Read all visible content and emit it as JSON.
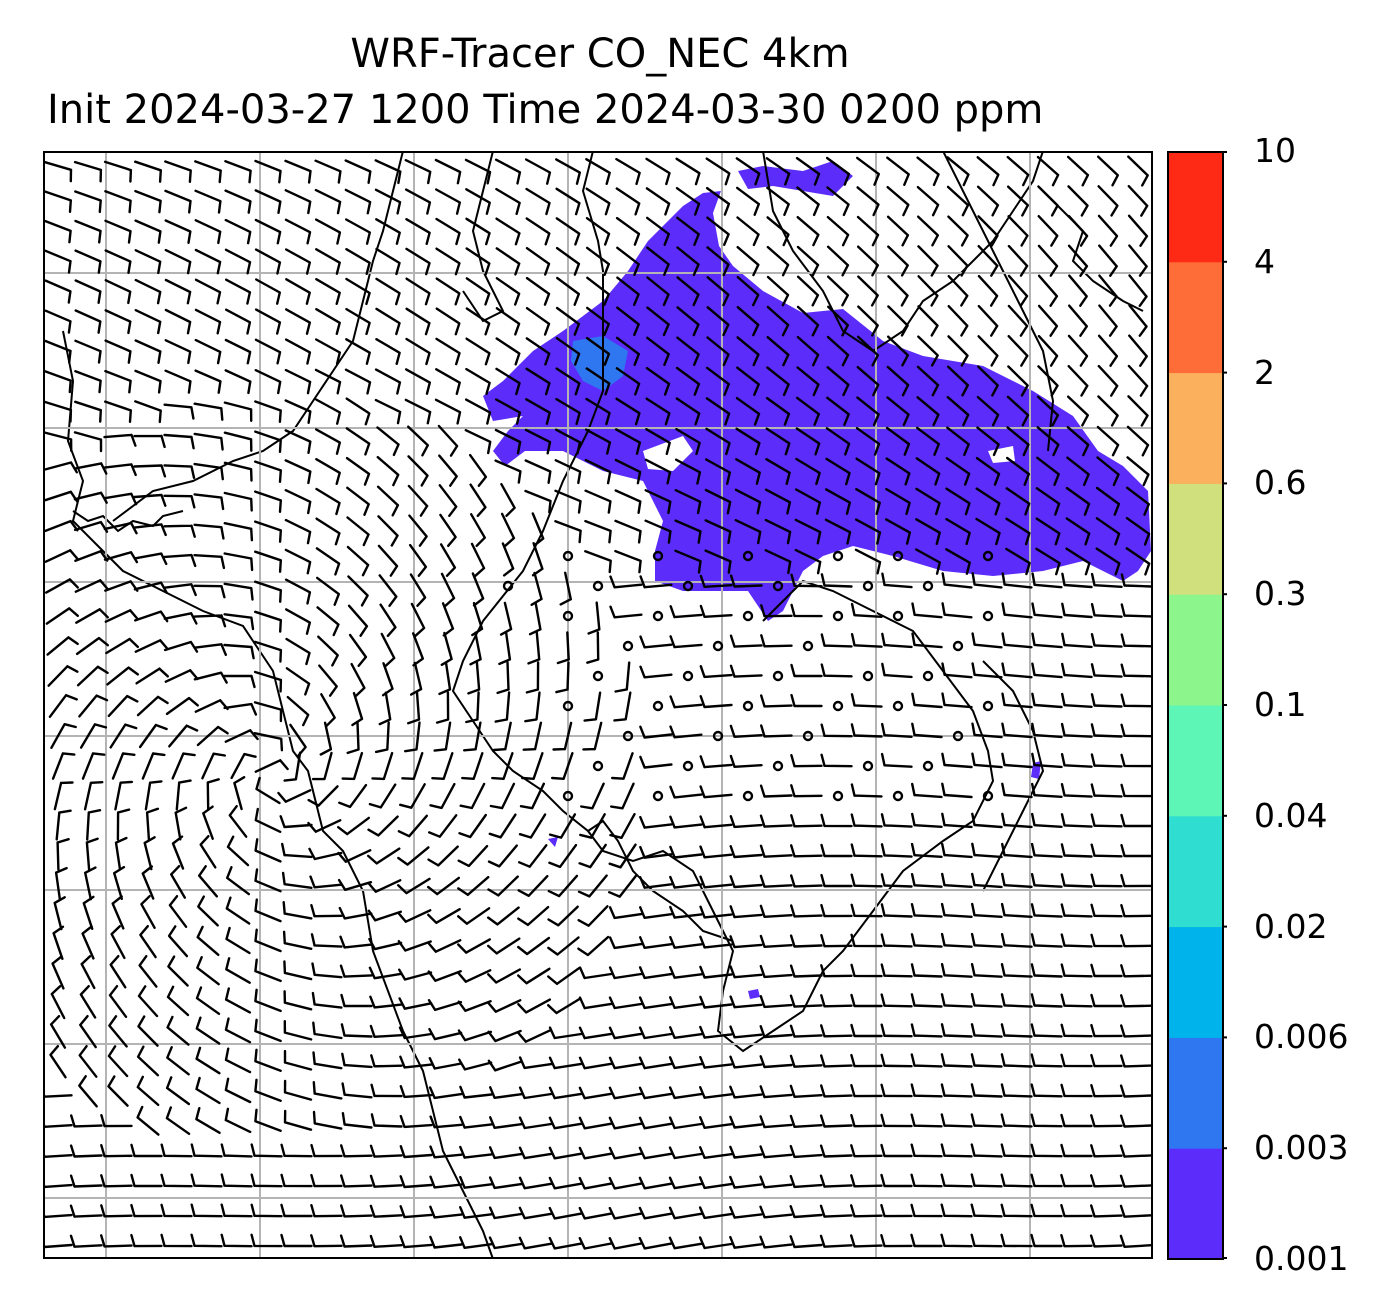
{
  "title": {
    "line1": "WRF-Tracer CO_NEC 4km",
    "line2": "Init 2024-03-27 1200 Time 2024-03-30 0200 ppm"
  },
  "colorbar": {
    "levels": [
      "0.001",
      "0.003",
      "0.006",
      "0.02",
      "0.04",
      "0.1",
      "0.3",
      "0.6",
      "2",
      "4",
      "10"
    ],
    "colors": [
      "#5b2cfa",
      "#2f77f1",
      "#00b3ea",
      "#2fddd1",
      "#5df6b7",
      "#8cf58b",
      "#cfe07d",
      "#fbb05e",
      "#fe6d37",
      "#ff2a16"
    ]
  },
  "map": {
    "plume_color": "#5b2cfa",
    "plume_core_color": "#2f77f1",
    "gridline_color": "#b4b4b4",
    "barb_color": "#000000",
    "symbols": [
      "wind-barbs",
      "calm-wind-circles",
      "coastlines",
      "lat-lon-grid"
    ]
  }
}
